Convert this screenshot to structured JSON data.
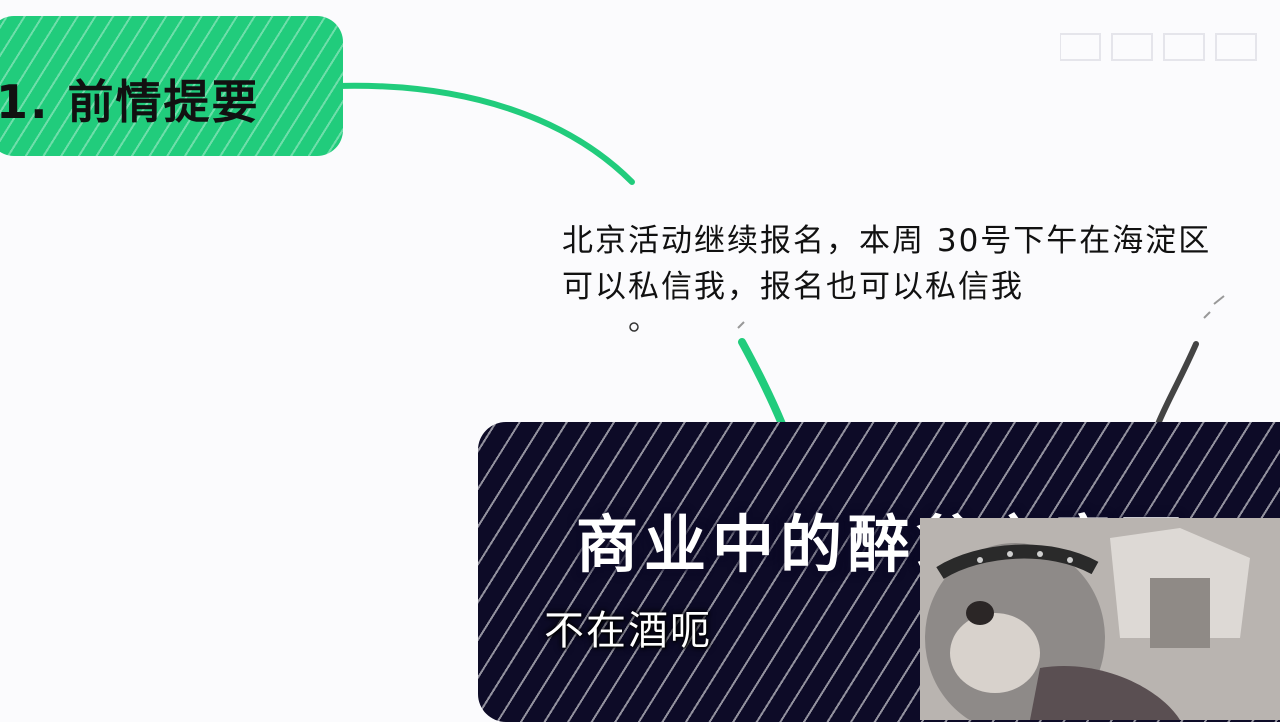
{
  "mindmap": {
    "section_title": "1. 前情提要",
    "notice_lines": [
      "北京活动继续报名，本周 30号下午在海淀区",
      "可以私信我，报名也可以私信我"
    ],
    "topic_heading": "商业中的醉翁之意不",
    "subtitle": "不在酒呃"
  },
  "colors": {
    "green_node": "#21cc7c",
    "dark_node": "#0d0b27",
    "connector_green": "#21cc7c",
    "connector_gray": "#444444"
  }
}
